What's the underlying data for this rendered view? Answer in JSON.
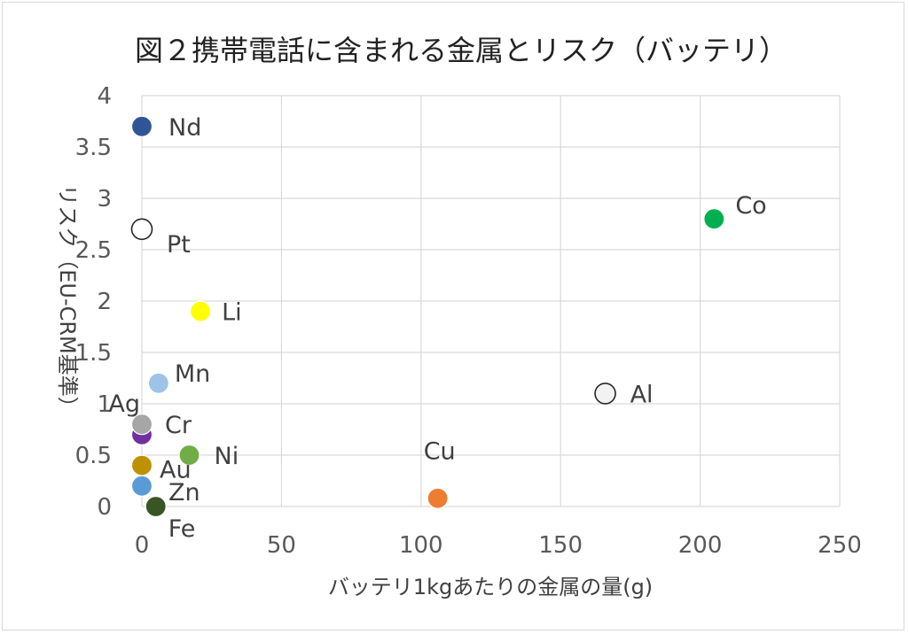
{
  "chart_data": {
    "type": "scatter",
    "title": "図２携帯電話に含まれる金属とリスク（バッテリ）",
    "xlabel": "バッテリ1kgあたりの金属の量(g)",
    "ylabel": "リスク（EU-CRM基準）",
    "xlim": [
      0,
      250
    ],
    "ylim": [
      0,
      4
    ],
    "x_ticks": [
      "0",
      "50",
      "100",
      "150",
      "200",
      "250"
    ],
    "y_ticks": [
      "0",
      "0.5",
      "1",
      "1.5",
      "2",
      "2.5",
      "3",
      "3.5",
      "4"
    ],
    "grid": true,
    "legend": "none",
    "points": [
      {
        "label": "Nd",
        "x": 0,
        "y": 3.7,
        "color": "#2f5597",
        "hollow": false
      },
      {
        "label": "Co",
        "x": 205,
        "y": 2.8,
        "color": "#00b050",
        "hollow": false
      },
      {
        "label": "Pt",
        "x": 0,
        "y": 2.7,
        "color": "#ffffff",
        "hollow": true
      },
      {
        "label": "Li",
        "x": 21,
        "y": 1.9,
        "color": "#ffff00",
        "hollow": false
      },
      {
        "label": "Mn",
        "x": 6,
        "y": 1.2,
        "color": "#9dc3e6",
        "hollow": false
      },
      {
        "label": "Al",
        "x": 166,
        "y": 1.1,
        "color": "#f2f2f2",
        "hollow": true
      },
      {
        "label": "Ag",
        "x": 0,
        "y": 0.7,
        "color": "#7030a0",
        "hollow": false
      },
      {
        "label": "Cr",
        "x": 0,
        "y": 0.8,
        "color": "#a6a6a6",
        "hollow": false
      },
      {
        "label": "Ni",
        "x": 17,
        "y": 0.5,
        "color": "#70ad47",
        "hollow": false
      },
      {
        "label": "Au",
        "x": 0,
        "y": 0.4,
        "color": "#bf9000",
        "hollow": false
      },
      {
        "label": "Zn",
        "x": 0,
        "y": 0.2,
        "color": "#5b9bd5",
        "hollow": false
      },
      {
        "label": "Cu",
        "x": 106,
        "y": 0.08,
        "color": "#ed7d31",
        "hollow": false
      },
      {
        "label": "Fe",
        "x": 5,
        "y": 0.0,
        "color": "#375623",
        "hollow": false
      }
    ]
  }
}
